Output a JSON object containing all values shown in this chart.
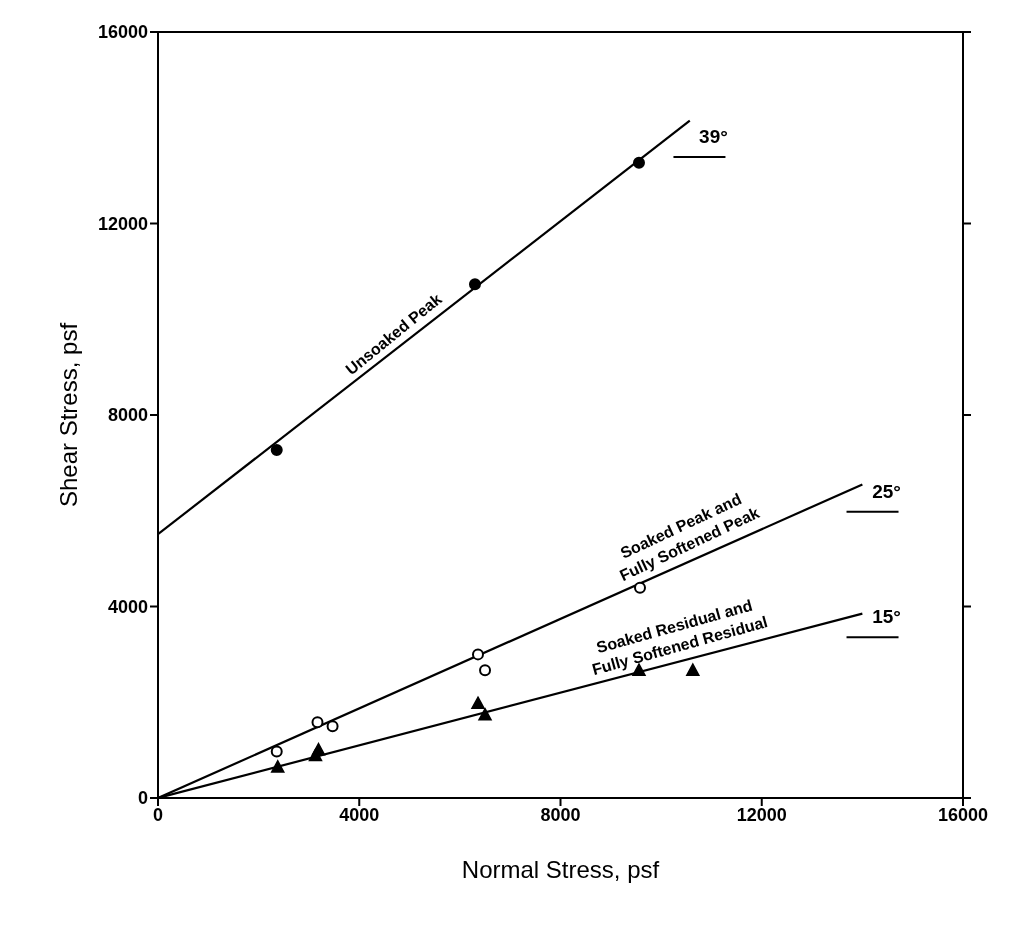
{
  "chart_data": {
    "type": "scatter",
    "xlabel": "Normal Stress, psf",
    "ylabel": "Shear Stress, psf",
    "xlim": [
      0,
      16000
    ],
    "ylim": [
      0,
      16000
    ],
    "xticks": [
      0,
      4000,
      8000,
      12000,
      16000
    ],
    "yticks": [
      0,
      4000,
      8000,
      12000,
      16000
    ],
    "grid": false,
    "series": [
      {
        "marker": "circle",
        "color": "#000000",
        "x": [
          2360,
          6300,
          9560
        ],
        "values": [
          7270,
          10730,
          13270
        ]
      },
      {
        "marker": "circle",
        "color": "#ffffff",
        "x": [
          2360,
          3170,
          3470,
          6360,
          6500,
          9580
        ],
        "values": [
          970,
          1580,
          1500,
          3000,
          2670,
          4390
        ]
      },
      {
        "marker": "triangle",
        "color": "#000000",
        "x": [
          2380,
          3130,
          3190,
          6360,
          6500,
          9560,
          10630
        ],
        "values": [
          650,
          890,
          1010,
          1980,
          1740,
          2670,
          2670
        ]
      },
      {
        "type": "line",
        "color": "#000000",
        "x": [
          0,
          10570
        ],
        "values": [
          5510,
          14150
        ]
      },
      {
        "type": "line",
        "color": "#000000",
        "x": [
          0,
          14000
        ],
        "values": [
          0,
          6550
        ]
      },
      {
        "type": "line",
        "color": "#000000",
        "x": [
          0,
          14000
        ],
        "values": [
          0,
          3850
        ]
      }
    ],
    "annotations": [
      "Unsoaked Peak",
      "Soaked Peak and\nFully Softened Peak",
      "Soaked Residual and\nFully Softened Residual",
      "39°",
      "25°",
      "15°"
    ]
  }
}
